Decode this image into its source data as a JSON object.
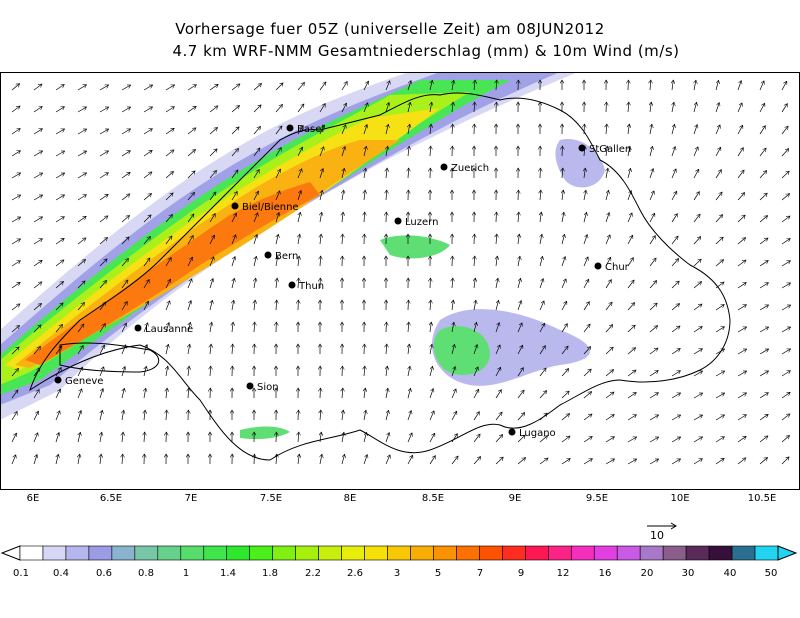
{
  "title": {
    "line1": "Vorhersage fuer 05Z (universelle Zeit) am 08JUN2012",
    "line2": "4.7 km WRF-NMM Gesamtniederschlag (mm) & 10m Wind (m/s)"
  },
  "cities": [
    {
      "name": "Basel"
    },
    {
      "name": "Zuerich"
    },
    {
      "name": "StGallen"
    },
    {
      "name": "Biel/Bienne"
    },
    {
      "name": "Luzern"
    },
    {
      "name": "Bern"
    },
    {
      "name": "Chur"
    },
    {
      "name": "Thun"
    },
    {
      "name": "Lausanne"
    },
    {
      "name": "Geneve"
    },
    {
      "name": "Sion"
    },
    {
      "name": "Lugano"
    }
  ],
  "x_axis": {
    "ticks": [
      "6E",
      "6.5E",
      "7E",
      "7.5E",
      "8E",
      "8.5E",
      "9E",
      "9.5E",
      "10E",
      "10.5E"
    ]
  },
  "wind_reference": {
    "value": "10"
  },
  "colorbar": {
    "colors": [
      "#ffffff",
      "#d6d6f5",
      "#b6b6ee",
      "#9c9ce6",
      "#8ab3d0",
      "#78c6a8",
      "#66d18a",
      "#56dd6c",
      "#3fe54b",
      "#2ee82e",
      "#4bef1c",
      "#7ff012",
      "#a6f00e",
      "#c8ef0c",
      "#e6ee0a",
      "#f5e008",
      "#f8c806",
      "#f9ae05",
      "#fa9204",
      "#fb7203",
      "#fc5202",
      "#fd2e1f",
      "#fd1854",
      "#fc2386",
      "#f42fbd",
      "#e23fe3",
      "#c85ae6",
      "#a878c9",
      "#8a5d8a",
      "#5a2a5a",
      "#36103a",
      "#2a6f8f",
      "#22d4f0"
    ],
    "labels": [
      "0.1",
      "0.4",
      "0.6",
      "0.8",
      "1",
      "1.4",
      "1.8",
      "2.2",
      "2.6",
      "3",
      "5",
      "7",
      "9",
      "12",
      "16",
      "20",
      "30",
      "40",
      "50"
    ]
  }
}
